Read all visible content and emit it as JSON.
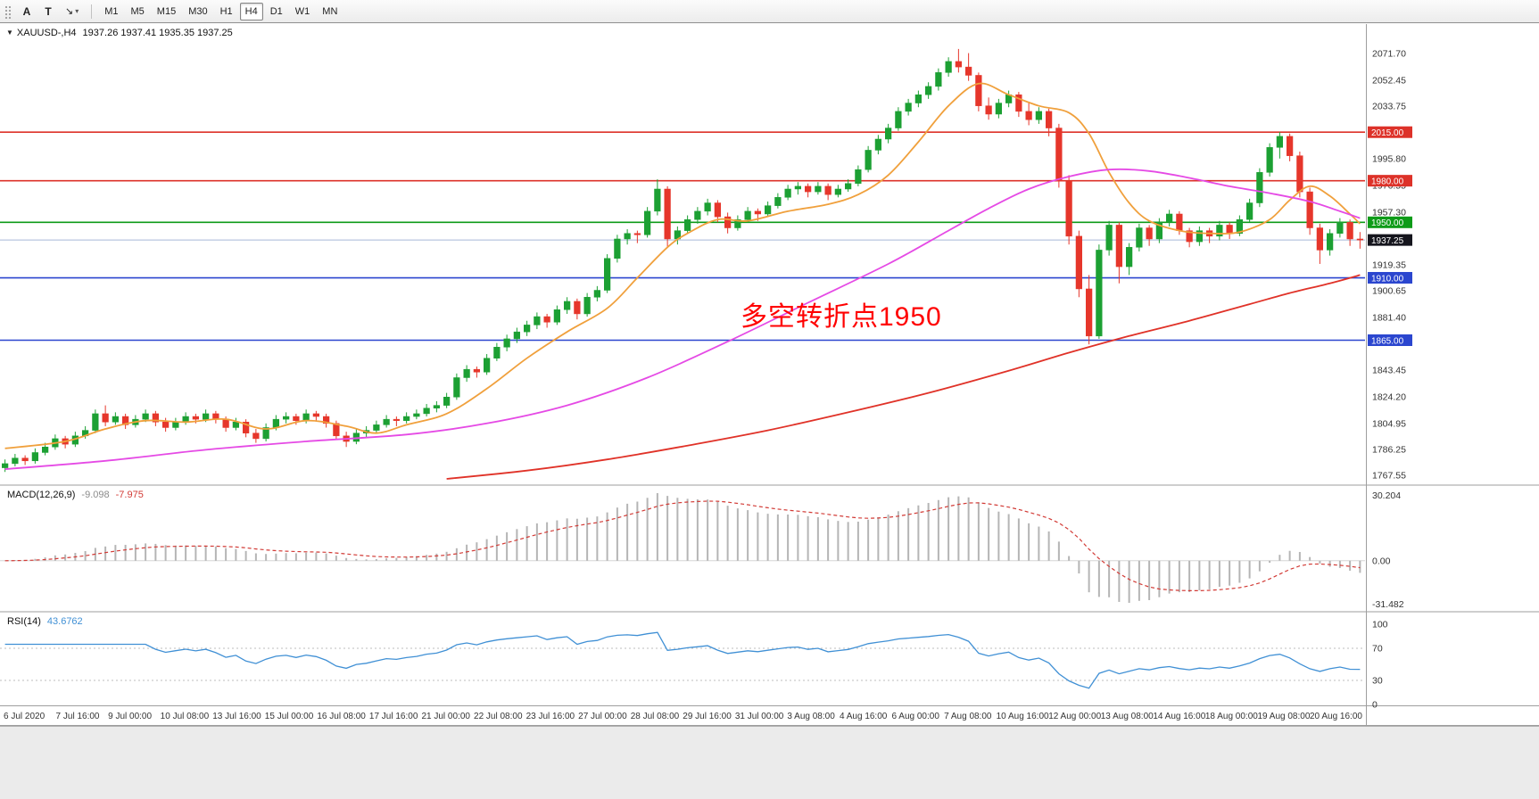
{
  "toolbar": {
    "tools": {
      "a": "A",
      "t": "T",
      "cursor": "↘",
      "caret": "▾"
    },
    "timeframes": [
      "M1",
      "M5",
      "M15",
      "M30",
      "H1",
      "H4",
      "D1",
      "W1",
      "MN"
    ],
    "selected_timeframe": "H4"
  },
  "chart": {
    "marker": "▼",
    "symbol": "XAUUSD-,H4",
    "ohlc": "1937.26 1937.41 1935.35 1937.25",
    "annotation": {
      "text": "多空转折点1950",
      "color": "#ff0000"
    },
    "current_price": {
      "value": 1937.25,
      "label": "1937.25",
      "badge_color": "#15151d",
      "line_color": "#a6b9d6"
    }
  },
  "price_scale": {
    "labels": [
      "2071.70",
      "2052.45",
      "2033.75",
      "1995.80",
      "1976.55",
      "1957.30",
      "1919.35",
      "1900.65",
      "1881.40",
      "1843.45",
      "1824.20",
      "1804.95",
      "1786.25",
      "1767.55"
    ]
  },
  "levels": [
    {
      "value": 2015.0,
      "label": "2015.00",
      "color": "#dd3229"
    },
    {
      "value": 1980.0,
      "label": "1980.00",
      "color": "#dd3229"
    },
    {
      "value": 1950.0,
      "label": "1950.00",
      "color": "#0e9b18"
    },
    {
      "value": 1910.0,
      "label": "1910.00",
      "color": "#2b46cf"
    },
    {
      "value": 1865.0,
      "label": "1865.00",
      "color": "#2b46cf"
    }
  ],
  "indicators": {
    "macd": {
      "label": "MACD(12,26,9)",
      "value_main": "-9.098",
      "value_signal": "-7.975",
      "params": {
        "fast": 12,
        "slow": 26,
        "signal": 9
      },
      "scale_labels": [
        "30.204",
        "0.00",
        "-31.482"
      ],
      "histogram_color": "#b5b5b5",
      "signal_color": "#d23b36"
    },
    "rsi": {
      "label": "RSI(14)",
      "value": "43.6762",
      "period": 14,
      "scale_labels": [
        "100",
        "70",
        "30",
        "0"
      ],
      "levels": [
        70,
        30
      ],
      "line_color": "#4090d5"
    }
  },
  "x_axis": {
    "labels": [
      "6 Jul 2020",
      "7 Jul 16:00",
      "9 Jul 00:00",
      "10 Jul 08:00",
      "13 Jul 16:00",
      "15 Jul 00:00",
      "16 Jul 08:00",
      "17 Jul 16:00",
      "21 Jul 00:00",
      "22 Jul 08:00",
      "23 Jul 16:00",
      "27 Jul 00:00",
      "28 Jul 08:00",
      "29 Jul 16:00",
      "31 Jul 00:00",
      "3 Aug 08:00",
      "4 Aug 16:00",
      "6 Aug 00:00",
      "7 Aug 08:00",
      "10 Aug 16:00",
      "12 Aug 00:00",
      "13 Aug 08:00",
      "14 Aug 16:00",
      "18 Aug 00:00",
      "19 Aug 08:00",
      "20 Aug 16:00"
    ]
  },
  "chart_data": {
    "type": "candlestick",
    "symbol": "XAUUSD",
    "timeframe": "H4",
    "ylim": [
      1760,
      2092
    ],
    "up_color": "#1ca033",
    "down_color": "#e6362b",
    "candles": [
      [
        1773,
        1779,
        1770,
        1776
      ],
      [
        1776,
        1783,
        1774,
        1780
      ],
      [
        1780,
        1782,
        1775,
        1778
      ],
      [
        1778,
        1787,
        1776,
        1784
      ],
      [
        1784,
        1791,
        1782,
        1788
      ],
      [
        1788,
        1797,
        1786,
        1794
      ],
      [
        1794,
        1796,
        1787,
        1790
      ],
      [
        1790,
        1799,
        1788,
        1796
      ],
      [
        1796,
        1803,
        1794,
        1800
      ],
      [
        1800,
        1815,
        1798,
        1812
      ],
      [
        1812,
        1818,
        1803,
        1806
      ],
      [
        1806,
        1813,
        1804,
        1810
      ],
      [
        1810,
        1812,
        1801,
        1804
      ],
      [
        1804,
        1811,
        1802,
        1808
      ],
      [
        1808,
        1815,
        1806,
        1812
      ],
      [
        1812,
        1814,
        1803,
        1806
      ],
      [
        1806,
        1809,
        1799,
        1802
      ],
      [
        1802,
        1809,
        1800,
        1806
      ],
      [
        1806,
        1813,
        1804,
        1810
      ],
      [
        1810,
        1812,
        1805,
        1808
      ],
      [
        1808,
        1815,
        1806,
        1812
      ],
      [
        1812,
        1814,
        1805,
        1808
      ],
      [
        1808,
        1810,
        1799,
        1802
      ],
      [
        1802,
        1809,
        1800,
        1806
      ],
      [
        1806,
        1808,
        1795,
        1798
      ],
      [
        1798,
        1801,
        1791,
        1794
      ],
      [
        1794,
        1805,
        1792,
        1802
      ],
      [
        1802,
        1811,
        1800,
        1808
      ],
      [
        1808,
        1813,
        1805,
        1810
      ],
      [
        1810,
        1812,
        1804,
        1807
      ],
      [
        1807,
        1815,
        1805,
        1812
      ],
      [
        1812,
        1814,
        1807,
        1810
      ],
      [
        1810,
        1812,
        1802,
        1805
      ],
      [
        1805,
        1807,
        1793,
        1796
      ],
      [
        1796,
        1799,
        1788,
        1792
      ],
      [
        1792,
        1801,
        1790,
        1798
      ],
      [
        1798,
        1803,
        1795,
        1800
      ],
      [
        1800,
        1807,
        1798,
        1804
      ],
      [
        1804,
        1811,
        1802,
        1808
      ],
      [
        1808,
        1810,
        1803,
        1807
      ],
      [
        1807,
        1813,
        1805,
        1810
      ],
      [
        1810,
        1815,
        1808,
        1812
      ],
      [
        1812,
        1819,
        1810,
        1816
      ],
      [
        1816,
        1821,
        1813,
        1818
      ],
      [
        1818,
        1827,
        1816,
        1824
      ],
      [
        1824,
        1841,
        1822,
        1838
      ],
      [
        1838,
        1847,
        1835,
        1844
      ],
      [
        1844,
        1846,
        1838,
        1842
      ],
      [
        1842,
        1855,
        1840,
        1852
      ],
      [
        1852,
        1863,
        1850,
        1860
      ],
      [
        1860,
        1869,
        1857,
        1866
      ],
      [
        1866,
        1874,
        1863,
        1871
      ],
      [
        1871,
        1879,
        1868,
        1876
      ],
      [
        1876,
        1885,
        1873,
        1882
      ],
      [
        1882,
        1884,
        1874,
        1878
      ],
      [
        1878,
        1890,
        1876,
        1887
      ],
      [
        1887,
        1896,
        1884,
        1893
      ],
      [
        1893,
        1895,
        1880,
        1884
      ],
      [
        1884,
        1899,
        1882,
        1896
      ],
      [
        1896,
        1904,
        1893,
        1901
      ],
      [
        1901,
        1927,
        1899,
        1924
      ],
      [
        1924,
        1941,
        1921,
        1938
      ],
      [
        1938,
        1945,
        1934,
        1942
      ],
      [
        1942,
        1944,
        1935,
        1941
      ],
      [
        1941,
        1961,
        1939,
        1958
      ],
      [
        1958,
        1981,
        1955,
        1974
      ],
      [
        1974,
        1976,
        1932,
        1938
      ],
      [
        1938,
        1947,
        1934,
        1944
      ],
      [
        1944,
        1955,
        1942,
        1952
      ],
      [
        1952,
        1961,
        1949,
        1958
      ],
      [
        1958,
        1967,
        1955,
        1964
      ],
      [
        1964,
        1966,
        1950,
        1954
      ],
      [
        1954,
        1957,
        1942,
        1946
      ],
      [
        1946,
        1955,
        1944,
        1952
      ],
      [
        1952,
        1961,
        1950,
        1958
      ],
      [
        1958,
        1960,
        1951,
        1956
      ],
      [
        1956,
        1965,
        1954,
        1962
      ],
      [
        1962,
        1971,
        1960,
        1968
      ],
      [
        1968,
        1977,
        1966,
        1974
      ],
      [
        1974,
        1979,
        1970,
        1976
      ],
      [
        1976,
        1978,
        1968,
        1972
      ],
      [
        1972,
        1979,
        1970,
        1976
      ],
      [
        1976,
        1978,
        1966,
        1970
      ],
      [
        1970,
        1977,
        1968,
        1974
      ],
      [
        1974,
        1981,
        1972,
        1978
      ],
      [
        1978,
        1991,
        1976,
        1988
      ],
      [
        1988,
        2005,
        1986,
        2002
      ],
      [
        2002,
        2013,
        1999,
        2010
      ],
      [
        2010,
        2021,
        2007,
        2018
      ],
      [
        2018,
        2033,
        2016,
        2030
      ],
      [
        2030,
        2039,
        2027,
        2036
      ],
      [
        2036,
        2045,
        2033,
        2042
      ],
      [
        2042,
        2051,
        2039,
        2048
      ],
      [
        2048,
        2061,
        2045,
        2058
      ],
      [
        2058,
        2069,
        2055,
        2066
      ],
      [
        2066,
        2075,
        2058,
        2062
      ],
      [
        2062,
        2072,
        2052,
        2056
      ],
      [
        2056,
        2058,
        2030,
        2034
      ],
      [
        2034,
        2040,
        2024,
        2028
      ],
      [
        2028,
        2039,
        2025,
        2036
      ],
      [
        2036,
        2045,
        2033,
        2042
      ],
      [
        2042,
        2044,
        2026,
        2030
      ],
      [
        2030,
        2037,
        2020,
        2024
      ],
      [
        2024,
        2033,
        2021,
        2030
      ],
      [
        2030,
        2032,
        2012,
        2018
      ],
      [
        2018,
        2021,
        1975,
        1980
      ],
      [
        1980,
        1984,
        1934,
        1940
      ],
      [
        1940,
        1944,
        1896,
        1902
      ],
      [
        1902,
        1912,
        1862,
        1868
      ],
      [
        1868,
        1934,
        1866,
        1930
      ],
      [
        1930,
        1951,
        1926,
        1948
      ],
      [
        1948,
        1950,
        1906,
        1918
      ],
      [
        1918,
        1935,
        1912,
        1932
      ],
      [
        1932,
        1949,
        1929,
        1946
      ],
      [
        1946,
        1948,
        1933,
        1938
      ],
      [
        1938,
        1953,
        1935,
        1950
      ],
      [
        1950,
        1959,
        1947,
        1956
      ],
      [
        1956,
        1958,
        1941,
        1944
      ],
      [
        1944,
        1946,
        1932,
        1936
      ],
      [
        1936,
        1947,
        1933,
        1944
      ],
      [
        1944,
        1946,
        1935,
        1940
      ],
      [
        1940,
        1951,
        1937,
        1948
      ],
      [
        1948,
        1950,
        1938,
        1942
      ],
      [
        1942,
        1955,
        1940,
        1952
      ],
      [
        1952,
        1967,
        1950,
        1964
      ],
      [
        1964,
        1989,
        1961,
        1986
      ],
      [
        1986,
        2007,
        1983,
        2004
      ],
      [
        2004,
        2015,
        1996,
        2012
      ],
      [
        2012,
        2014,
        1994,
        1998
      ],
      [
        1998,
        2001,
        1968,
        1972
      ],
      [
        1972,
        1975,
        1941,
        1946
      ],
      [
        1946,
        1949,
        1920,
        1930
      ],
      [
        1930,
        1945,
        1926,
        1942
      ],
      [
        1942,
        1953,
        1939,
        1950
      ],
      [
        1950,
        1952,
        1933,
        1938
      ],
      [
        1938,
        1943,
        1931,
        1937.25
      ]
    ],
    "overlays": [
      {
        "name": "ma-fast",
        "color": "#f0a03c",
        "points": [
          [
            0,
            1787
          ],
          [
            6,
            1792
          ],
          [
            10,
            1801
          ],
          [
            14,
            1807
          ],
          [
            18,
            1806
          ],
          [
            22,
            1808
          ],
          [
            26,
            1801
          ],
          [
            30,
            1807
          ],
          [
            34,
            1803
          ],
          [
            37,
            1798
          ],
          [
            40,
            1804
          ],
          [
            44,
            1812
          ],
          [
            48,
            1830
          ],
          [
            52,
            1852
          ],
          [
            56,
            1871
          ],
          [
            60,
            1888
          ],
          [
            63,
            1910
          ],
          [
            66,
            1932
          ],
          [
            68,
            1942
          ],
          [
            71,
            1952
          ],
          [
            74,
            1951
          ],
          [
            78,
            1958
          ],
          [
            82,
            1963
          ],
          [
            85,
            1970
          ],
          [
            88,
            1984
          ],
          [
            91,
            2008
          ],
          [
            94,
            2034
          ],
          [
            97,
            2050
          ],
          [
            100,
            2042
          ],
          [
            103,
            2034
          ],
          [
            106,
            2029
          ],
          [
            108,
            2014
          ],
          [
            110,
            1986
          ],
          [
            112,
            1964
          ],
          [
            114,
            1951
          ],
          [
            117,
            1944
          ],
          [
            120,
            1942
          ],
          [
            123,
            1943
          ],
          [
            126,
            1952
          ],
          [
            128,
            1966
          ],
          [
            130,
            1976
          ],
          [
            132,
            1969
          ],
          [
            134,
            1956
          ],
          [
            135,
            1949
          ]
        ]
      },
      {
        "name": "ma-medium",
        "color": "#e54ae5",
        "points": [
          [
            0,
            1772
          ],
          [
            10,
            1778
          ],
          [
            20,
            1786
          ],
          [
            30,
            1792
          ],
          [
            40,
            1797
          ],
          [
            48,
            1805
          ],
          [
            56,
            1818
          ],
          [
            64,
            1838
          ],
          [
            72,
            1864
          ],
          [
            80,
            1892
          ],
          [
            88,
            1920
          ],
          [
            94,
            1944
          ],
          [
            98,
            1960
          ],
          [
            102,
            1974
          ],
          [
            106,
            1983
          ],
          [
            110,
            1988
          ],
          [
            114,
            1987
          ],
          [
            118,
            1982
          ],
          [
            122,
            1976
          ],
          [
            126,
            1971
          ],
          [
            130,
            1965
          ],
          [
            133,
            1958
          ],
          [
            135,
            1953
          ]
        ]
      },
      {
        "name": "ma-slow",
        "color": "#e03228",
        "points": [
          [
            44,
            1765
          ],
          [
            52,
            1771
          ],
          [
            60,
            1779
          ],
          [
            68,
            1789
          ],
          [
            76,
            1800
          ],
          [
            84,
            1813
          ],
          [
            92,
            1827
          ],
          [
            100,
            1843
          ],
          [
            106,
            1856
          ],
          [
            112,
            1868
          ],
          [
            118,
            1879
          ],
          [
            124,
            1891
          ],
          [
            128,
            1899
          ],
          [
            132,
            1906
          ],
          [
            135,
            1912
          ]
        ]
      }
    ]
  }
}
